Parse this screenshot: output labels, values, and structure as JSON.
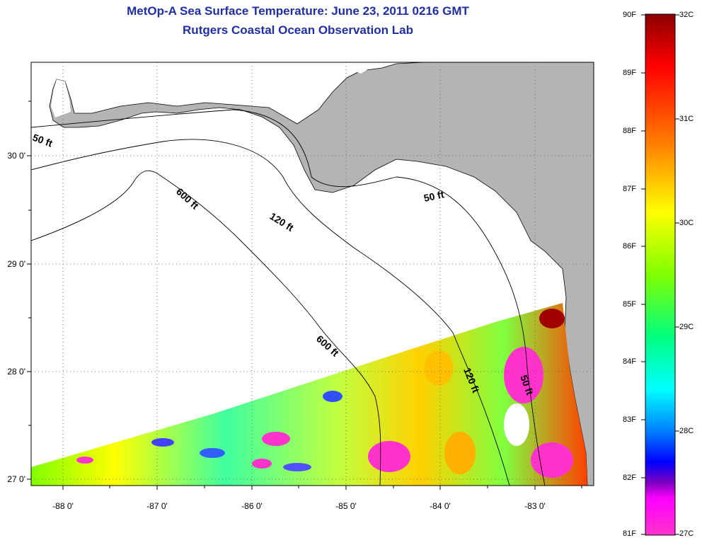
{
  "header": {
    "title": "MetOp-A Sea Surface Temperature:  June 23, 2011 0216 GMT",
    "subtitle": "Rutgers Coastal Ocean Observation Lab"
  },
  "map": {
    "lon_ticks": [
      "-88 0'",
      "-87 0'",
      "-86 0'",
      "-85 0'",
      "-84 0'",
      "-83 0'"
    ],
    "lat_ticks": [
      "30 0'",
      "29 0'",
      "28 0'",
      "27 0'"
    ],
    "contour_labels": [
      "50 ft",
      "50 ft",
      "50 ft",
      "120 ft",
      "120 ft",
      "600 ft",
      "600 ft"
    ],
    "colors": {
      "land": "#b4b4b4",
      "ocean": "#ffffff",
      "contour": "#000000"
    }
  },
  "colorbar": {
    "f_labels": [
      "90F",
      "89F",
      "88F",
      "87F",
      "86F",
      "85F",
      "84F",
      "83F",
      "82F",
      "81F"
    ],
    "c_labels": [
      "32C",
      "31C",
      "30C",
      "29C",
      "28C",
      "27C"
    ],
    "colors": [
      "#8b0000",
      "#ff0000",
      "#ff8000",
      "#ffff00",
      "#80ff00",
      "#00ff80",
      "#00ffff",
      "#0080ff",
      "#0000ff",
      "#ff00ff",
      "#ff33cc"
    ]
  }
}
